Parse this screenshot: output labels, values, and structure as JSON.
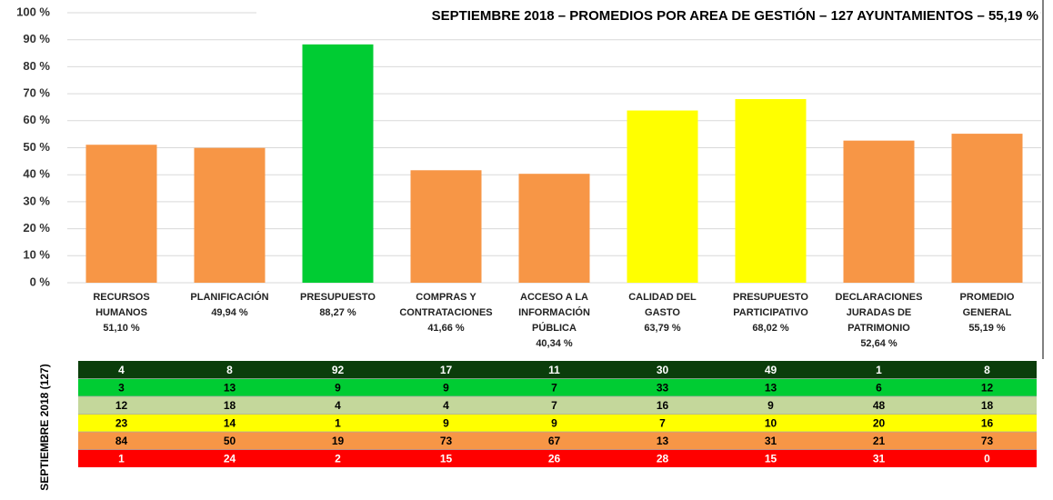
{
  "chart_data": {
    "type": "bar",
    "title": "SEPTIEMBRE  2018 – PROMEDIOS  POR AREA  DE GESTIÓN  – 127 AYUNTAMIENTOS  – 55,19 %",
    "categories": [
      "RECURSOS HUMANOS",
      "PLANIFICACIÓN",
      "PRESUPUESTO",
      "COMPRAS Y CONTRATACIONES",
      "ACCESO A LA INFORMACIÓN PÚBLICA",
      "CALIDAD DEL GASTO",
      "PRESUPUESTO PARTICIPATIVO",
      "DECLARACIONES JURADAS DE PATRIMONIO",
      "PROMEDIO GENERAL"
    ],
    "values": [
      51.1,
      49.94,
      88.27,
      41.66,
      40.34,
      63.79,
      68.02,
      52.64,
      55.19
    ],
    "value_labels": [
      "51,10 %",
      "49,94 %",
      "88,27 %",
      "41,66 %",
      "40,34 %",
      "63,79 %",
      "68,02 %",
      "52,64 %",
      "55,19 %"
    ],
    "colors": [
      "#F79646",
      "#F79646",
      "#00CC33",
      "#F79646",
      "#F79646",
      "#FFFF00",
      "#FFFF00",
      "#F79646",
      "#F79646"
    ],
    "ylim": [
      0,
      100
    ],
    "yticks": [
      {
        "value": 0,
        "label": "0 %"
      },
      {
        "value": 10,
        "label": "10 %"
      },
      {
        "value": 20,
        "label": "20 %"
      },
      {
        "value": 30,
        "label": "30 %"
      },
      {
        "value": 40,
        "label": "40 %"
      },
      {
        "value": 50,
        "label": "50 %"
      },
      {
        "value": 60,
        "label": "60 %"
      },
      {
        "value": 70,
        "label": "70 %"
      },
      {
        "value": 80,
        "label": "80 %"
      },
      {
        "value": 90,
        "label": "90 %"
      },
      {
        "value": 100,
        "label": "100 %"
      }
    ],
    "grid": true
  },
  "table": {
    "label": "SEPTIEMBRE 2018 (127)",
    "row_colors": [
      "#0B3D0B",
      "#00CC33",
      "#C4D79B",
      "#FFFF00",
      "#F79646",
      "#FF0000"
    ],
    "text_colors": [
      "#FFFFFF",
      "#000000",
      "#000000",
      "#000000",
      "#000000",
      "#FFFFFF"
    ],
    "rows": [
      [
        4,
        8,
        92,
        17,
        11,
        30,
        49,
        1,
        8
      ],
      [
        3,
        13,
        9,
        9,
        7,
        33,
        13,
        6,
        12
      ],
      [
        12,
        18,
        4,
        4,
        7,
        16,
        9,
        48,
        18
      ],
      [
        23,
        14,
        1,
        9,
        9,
        7,
        10,
        20,
        16
      ],
      [
        84,
        50,
        19,
        73,
        67,
        13,
        31,
        21,
        73
      ],
      [
        1,
        24,
        2,
        15,
        26,
        28,
        15,
        31,
        0
      ]
    ]
  }
}
